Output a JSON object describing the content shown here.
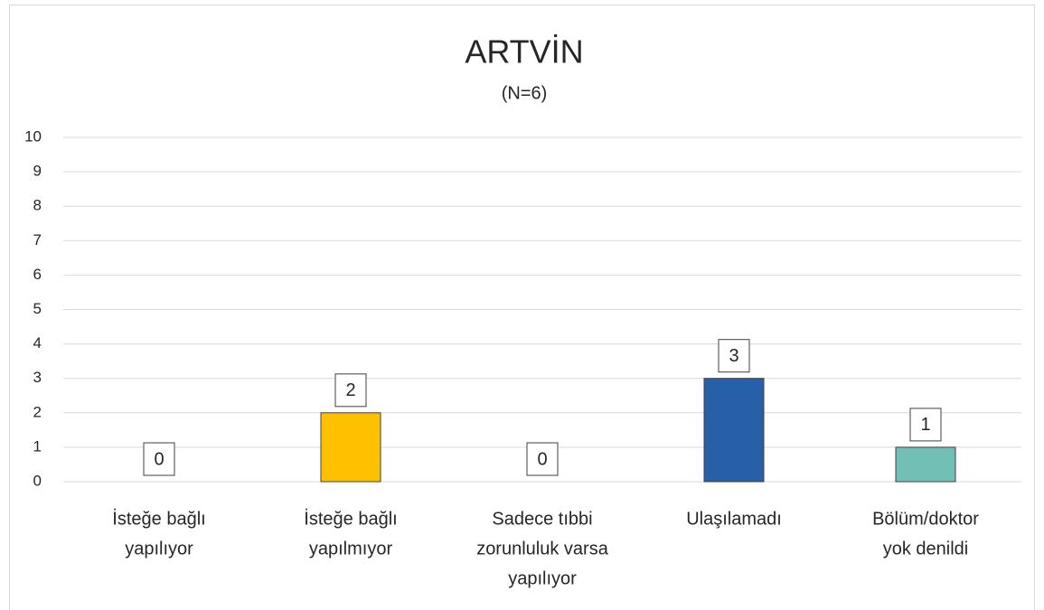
{
  "chart_data": {
    "type": "bar",
    "title": "ARTVİN",
    "subtitle": "(N=6)",
    "categories": [
      [
        "İsteğe bağlı",
        "yapılıyor"
      ],
      [
        "İsteğe bağlı",
        "yapılmıyor"
      ],
      [
        "Sadece tıbbi",
        "zorunluluk varsa",
        "yapılıyor"
      ],
      [
        "Ulaşılamadı"
      ],
      [
        "Bölüm/doktor",
        "yok denildi"
      ]
    ],
    "values": [
      0,
      2,
      0,
      3,
      1
    ],
    "colors": [
      null,
      "#FFC000",
      null,
      "#2760A8",
      "#72BFB6"
    ],
    "ylim": [
      0,
      10
    ],
    "yticks": [
      0,
      1,
      2,
      3,
      4,
      5,
      6,
      7,
      8,
      9,
      10
    ],
    "grid": true
  }
}
